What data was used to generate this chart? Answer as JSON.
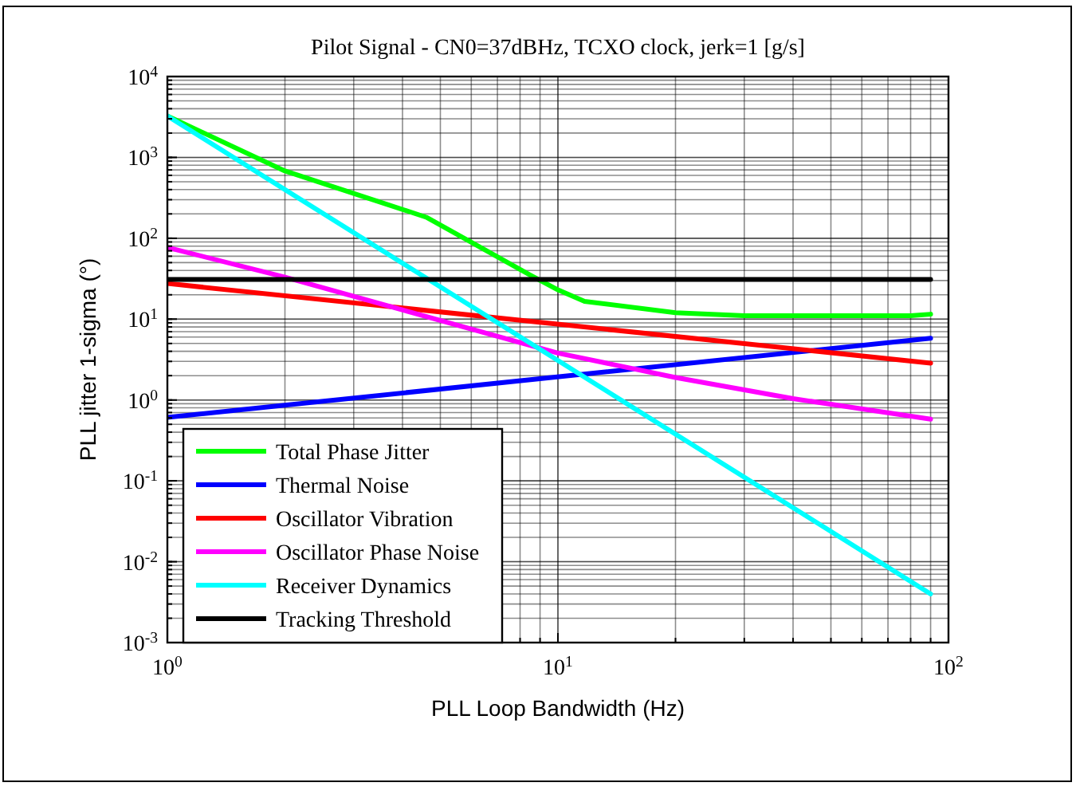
{
  "chart_data": {
    "type": "line",
    "title": "Pilot Signal - CN0=37dBHz, TCXO clock, jerk=1 [g/s]",
    "xlabel": "PLL Loop Bandwidth (Hz)",
    "ylabel": "PLL jitter 1-sigma (°)",
    "log": "xy",
    "grid": true,
    "legend": "bottom left",
    "line_style": "solid",
    "marker": "none",
    "xlim": [
      1,
      100
    ],
    "ylim": [
      0.001,
      10000
    ],
    "xticks": [
      {
        "value": 1,
        "label": "10$^{0}$"
      },
      {
        "value": 10,
        "label": "10$^{1}$"
      },
      {
        "value": 100,
        "label": "10$^{2}$"
      }
    ],
    "yticks": [
      {
        "value": 0.001,
        "label": "10$^{-3}$"
      },
      {
        "value": 0.01,
        "label": "10$^{-2}$"
      },
      {
        "value": 0.1,
        "label": "10$^{-1}$"
      },
      {
        "value": 1,
        "label": "10$^{0}$"
      },
      {
        "value": 10,
        "label": "10$^{1}$"
      },
      {
        "value": 100,
        "label": "10$^{2}$"
      },
      {
        "value": 1000,
        "label": "10$^{3}$"
      },
      {
        "value": 10000,
        "label": "10$^{4}$"
      }
    ],
    "series": [
      {
        "name": "Total Phase Jitter",
        "color": "#00ff00",
        "x": [
          1,
          2,
          4.6,
          8.5,
          10,
          11.7,
          20,
          30,
          50,
          80,
          90
        ],
        "values": [
          3250,
          680,
          182,
          35,
          23,
          16.6,
          12,
          11,
          11,
          11,
          11.5
        ]
      },
      {
        "name": "Thermal Noise",
        "color": "#0000ff",
        "x": [
          1,
          90
        ],
        "values": [
          0.61,
          5.8
        ]
      },
      {
        "name": "Oscillator Vibration",
        "color": "#ff0000",
        "x": [
          1,
          90
        ],
        "values": [
          27.6,
          2.86
        ]
      },
      {
        "name": "Oscillator Phase Noise",
        "color": "#ff00ff",
        "x": [
          1,
          2,
          10,
          20,
          40,
          90
        ],
        "values": [
          77,
          33,
          3.8,
          1.9,
          1.04,
          0.58
        ]
      },
      {
        "name": "Receiver Dynamics",
        "color": "#00ffff",
        "x": [
          1,
          90
        ],
        "values": [
          3250,
          0.004
        ]
      },
      {
        "name": "Tracking Threshold",
        "color": "#000000",
        "x": [
          1,
          90
        ],
        "values": [
          31,
          31
        ]
      }
    ]
  }
}
